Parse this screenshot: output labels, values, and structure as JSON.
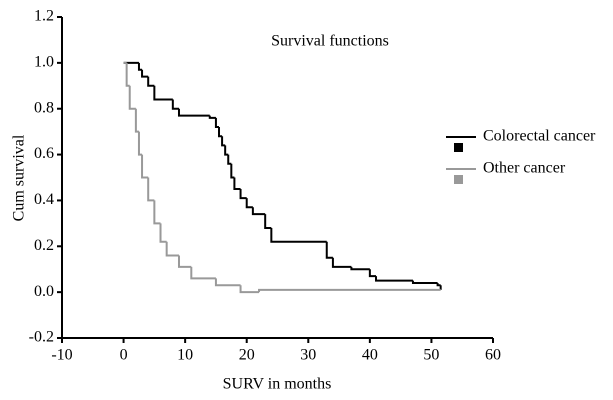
{
  "chart_data": {
    "type": "step",
    "title": "Survival functions",
    "x_label": "SURV in months",
    "y_label": "Cum survival",
    "xlim": [
      -10,
      60
    ],
    "xticks": [
      -10,
      0,
      10,
      20,
      30,
      40,
      50,
      60
    ],
    "ylim": [
      -0.2,
      1.2
    ],
    "yticks": [
      -0.2,
      {
        "value": 0,
        "label": "0.0"
      },
      0.2,
      0.4,
      0.6,
      0.8,
      {
        "value": 1,
        "label": "1.0"
      },
      1.2
    ],
    "legend": "right",
    "series": [
      {
        "name": "Colorectal cancer",
        "color": "#000000",
        "x": [
          0,
          2.5,
          3,
          4,
          5,
          8,
          9,
          14,
          15,
          15.5,
          16,
          16.5,
          17,
          17.5,
          18,
          19,
          20,
          21,
          23,
          24,
          33,
          34,
          37,
          40,
          41,
          47,
          51,
          51.5
        ],
        "values": [
          1.0,
          0.97,
          0.94,
          0.9,
          0.84,
          0.8,
          0.77,
          0.76,
          0.72,
          0.68,
          0.64,
          0.6,
          0.56,
          0.5,
          0.45,
          0.41,
          0.37,
          0.34,
          0.28,
          0.22,
          0.15,
          0.11,
          0.1,
          0.07,
          0.05,
          0.04,
          0.03,
          0.01
        ]
      },
      {
        "name": "Other cancer",
        "color": "#999999",
        "x": [
          0,
          0.5,
          1,
          2,
          2.5,
          3,
          4,
          5,
          6,
          7,
          9,
          11,
          15,
          19,
          22,
          51.5
        ],
        "values": [
          1.0,
          0.9,
          0.8,
          0.7,
          0.6,
          0.5,
          0.4,
          0.3,
          0.22,
          0.16,
          0.11,
          0.06,
          0.03,
          0.0,
          0.01,
          0.01
        ]
      }
    ]
  }
}
